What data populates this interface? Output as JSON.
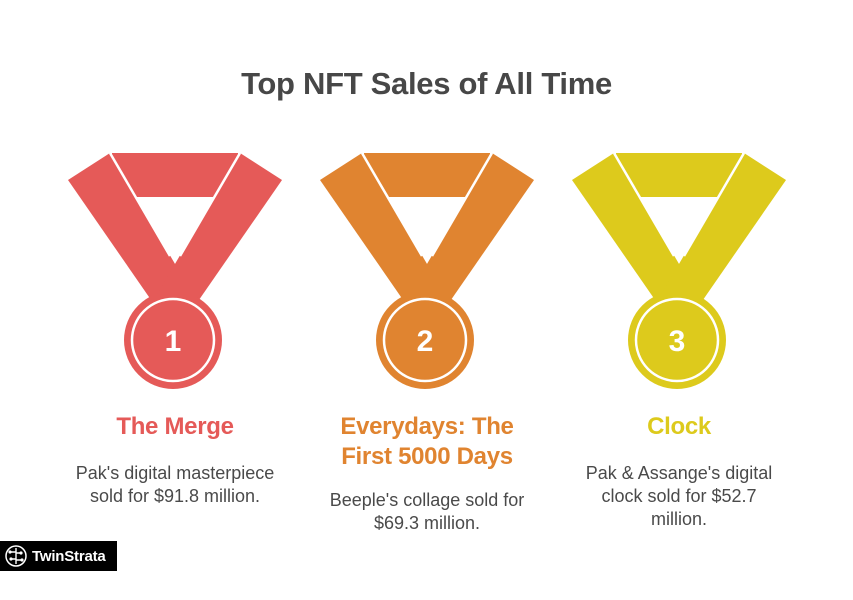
{
  "title": "Top NFT Sales of All Time",
  "medals": [
    {
      "rank": "1",
      "name": "The Merge",
      "description": "Pak's digital masterpiece sold for $91.8 million.",
      "color": "#E55A58"
    },
    {
      "rank": "2",
      "name": "Everydays: The First 5000 Days",
      "description": "Beeple's collage sold for $69.3 million.",
      "color": "#E08430"
    },
    {
      "rank": "3",
      "name": "Clock",
      "description": "Pak & Assange's digital clock sold for $52.7 million.",
      "color": "#DDCA1C"
    }
  ],
  "brand": {
    "name": "TwinStrata",
    "icon": "brain-circuit-icon"
  }
}
